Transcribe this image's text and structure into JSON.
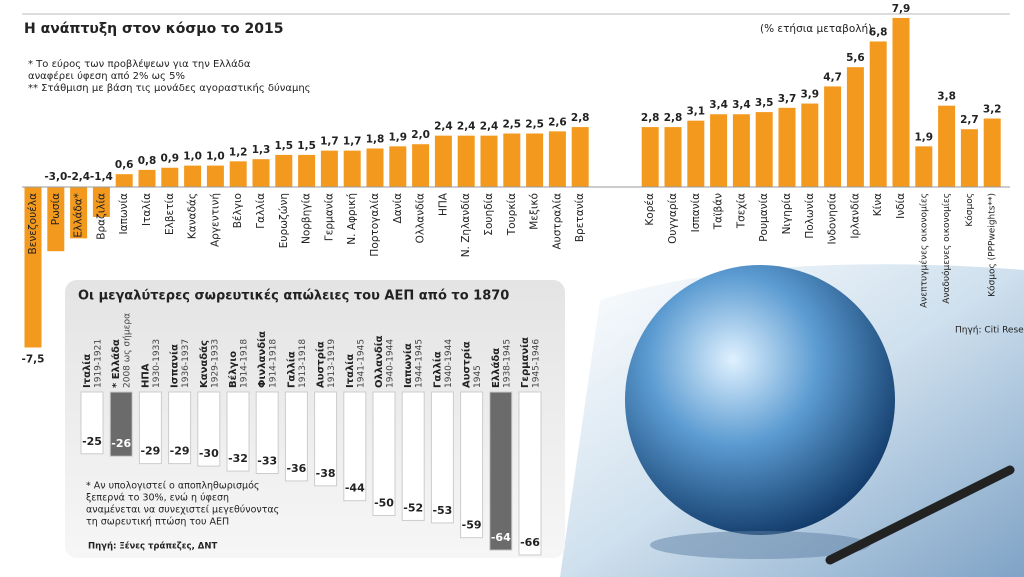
{
  "chart_data": [
    {
      "type": "bar",
      "title": "Η ανάπτυξη στον κόσμο το 2015",
      "subtitle": "(% ετήσια μεταβολή)",
      "notes": [
        "* Το εύρος των προβλέψεων για την Ελλάδα",
        "αναφέρει ύφεση από 2% ως 5%",
        "** Στάθμιση με βάση τις μονάδες αγοραστικής δύναμης"
      ],
      "source": "Πηγή: Citi Research",
      "color": "#f39a1e",
      "categories": [
        "Βενεζουέλα",
        "Ρωσία",
        "Ελλάδα*",
        "Βραζιλία",
        "Ιαπωνία",
        "Ιταλία",
        "Ελβετία",
        "Καναδάς",
        "Αργεντινή",
        "Βέλγιο",
        "Γαλλία",
        "Ευρωζώνη",
        "Νορβηγία",
        "Γερμανία",
        "Ν. Αφρική",
        "Πορτογαλία",
        "Δανία",
        "Ολλανδία",
        "ΗΠΑ",
        "Ν. Ζηλανδία",
        "Σουηδία",
        "Τουρκία",
        "Μεξικό",
        "Αυστραλία",
        "Βρετανία",
        null,
        "Κορέα",
        "Ουγγαρία",
        "Ισπανία",
        "Ταϊβάν",
        "Τσεχία",
        "Ρουμανία",
        "Νιγηρία",
        "Πολωνία",
        "Ινδονησία",
        "Ιρλανδία",
        "Κίνα",
        "Ινδία",
        "Ανεπτυγμένες οικονομίες",
        "Αναδυόμενες οικονομίες",
        "Κόσμος",
        "Κόσμος (PPPweights**)"
      ],
      "values": [
        -7.5,
        -3.0,
        -2.4,
        -1.4,
        0.6,
        0.8,
        0.9,
        1.0,
        1.0,
        1.2,
        1.3,
        1.5,
        1.5,
        1.7,
        1.7,
        1.8,
        1.9,
        2.0,
        2.4,
        2.4,
        2.4,
        2.5,
        2.5,
        2.6,
        2.8,
        null,
        2.8,
        2.8,
        3.1,
        3.4,
        3.4,
        3.5,
        3.7,
        3.9,
        4.7,
        5.6,
        6.8,
        7.9,
        1.9,
        3.8,
        2.7,
        3.2
      ],
      "value_labels": [
        "-7,5",
        "-3,0",
        "-2,4",
        "-1,4",
        "0,6",
        "0,8",
        "0,9",
        "1,0",
        "1,0",
        "1,2",
        "1,3",
        "1,5",
        "1,5",
        "1,7",
        "1,7",
        "1,8",
        "1,9",
        "2,0",
        "2,4",
        "2,4",
        "2,4",
        "2,5",
        "2,5",
        "2,6",
        "2,8",
        null,
        "2,8",
        "2,8",
        "3,1",
        "3,4",
        "3,4",
        "3,5",
        "3,7",
        "3,9",
        "4,7",
        "5,6",
        "6,8",
        "7,9",
        "1,9",
        "3,8",
        "2,7",
        "3,2"
      ]
    },
    {
      "type": "bar",
      "title": "Οι μεγαλύτερες σωρευτικές απώλειες του ΑΕΠ από το 1870",
      "notes": [
        "* Αν υπολογιστεί ο αποπληθωρισμός",
        "ξεπερνά το 30%, ενώ η ύφεση",
        "αναμένεται να συνεχιστεί μεγεθύνοντας",
        "τη σωρευτική πτώση του ΑΕΠ"
      ],
      "source": "Πηγή: Ξένες τράπεζες, ΔΝΤ",
      "categories": [
        "Ιταλία",
        "* Ελλάδα",
        "ΗΠΑ",
        "Ισπανία",
        "Καναδάς",
        "Βέλγιο",
        "Φινλανδία",
        "Γαλλία",
        "Αυστρία",
        "Ιταλία",
        "Ολλανδία",
        "Ιαπωνία",
        "Γαλλία",
        "Αυστρία",
        "Ελλάδα",
        "Γερμανία"
      ],
      "periods": [
        "1919-1921",
        "2008 ως σήμερα",
        "1930-1933",
        "1936-1937",
        "1929-1933",
        "1914-1918",
        "1914-1918",
        "1913-1918",
        "1913-1919",
        "1941-1945",
        "1940-1944",
        "1944-1945",
        "1940-1944",
        "1945",
        "1938-1945",
        "1945-1946"
      ],
      "values": [
        -25,
        -26,
        -29,
        -29,
        -30,
        -32,
        -33,
        -36,
        -38,
        -44,
        -50,
        -52,
        -53,
        -59,
        -64,
        -66
      ],
      "colors": [
        "#ffffff",
        "#6b6b6b",
        "#ffffff",
        "#ffffff",
        "#ffffff",
        "#ffffff",
        "#ffffff",
        "#ffffff",
        "#ffffff",
        "#ffffff",
        "#ffffff",
        "#ffffff",
        "#ffffff",
        "#ffffff",
        "#6b6b6b",
        "#ffffff"
      ]
    }
  ]
}
